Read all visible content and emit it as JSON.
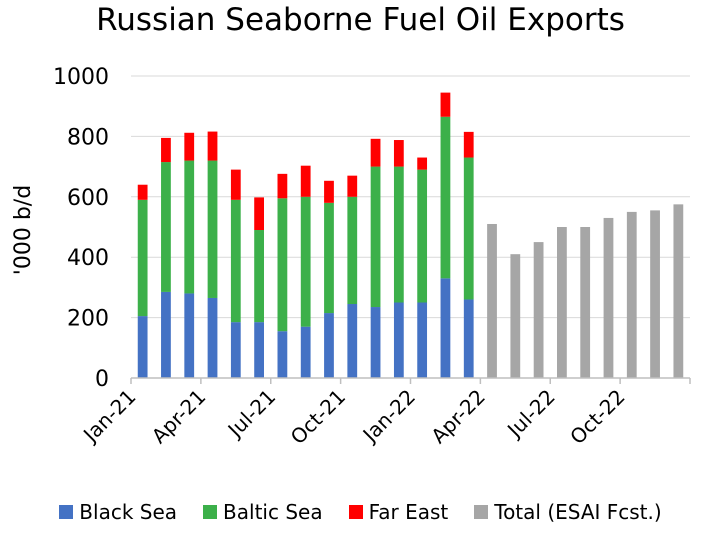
{
  "chart_data": {
    "type": "bar",
    "stacked": true,
    "title": "Russian Seaborne Fuel Oil Exports",
    "xlabel": "",
    "ylabel": "'000 b/d",
    "ylim": [
      0,
      1000
    ],
    "yticks": [
      0,
      200,
      400,
      600,
      800,
      1000
    ],
    "grid": "horizontal",
    "legend_position": "bottom",
    "x_tick_labels": [
      "Jan-21",
      "Apr-21",
      "Jul-21",
      "Oct-21",
      "Jan-22",
      "Apr-22",
      "Jul-22",
      "Oct-22"
    ],
    "categories": [
      "Jan-21",
      "Feb-21",
      "Mar-21",
      "Apr-21",
      "May-21",
      "Jun-21",
      "Jul-21",
      "Aug-21",
      "Sep-21",
      "Oct-21",
      "Nov-21",
      "Dec-21",
      "Jan-22",
      "Feb-22",
      "Mar-22",
      "Apr-22",
      "May-22",
      "Jun-22",
      "Jul-22",
      "Aug-22",
      "Sep-22",
      "Oct-22",
      "Nov-22",
      "Dec-22"
    ],
    "series": [
      {
        "name": "Black Sea",
        "color": "#4472C4",
        "values": [
          205,
          285,
          280,
          265,
          185,
          185,
          155,
          170,
          215,
          245,
          235,
          250,
          250,
          330,
          260,
          null,
          null,
          null,
          null,
          null,
          null,
          null,
          null,
          null
        ]
      },
      {
        "name": "Baltic Sea",
        "color": "#3CB04A",
        "values": [
          385,
          430,
          440,
          455,
          405,
          305,
          440,
          430,
          365,
          355,
          465,
          450,
          440,
          535,
          470,
          null,
          null,
          null,
          null,
          null,
          null,
          null,
          null,
          null
        ]
      },
      {
        "name": "Far East",
        "color": "#FF0000",
        "values": [
          50,
          80,
          92,
          96,
          100,
          108,
          81,
          103,
          73,
          70,
          92,
          88,
          40,
          80,
          85,
          null,
          null,
          null,
          null,
          null,
          null,
          null,
          null,
          null
        ]
      },
      {
        "name": "Total (ESAI Fcst.)",
        "color": "#A6A6A6",
        "values": [
          null,
          null,
          null,
          null,
          null,
          null,
          null,
          null,
          null,
          null,
          null,
          null,
          null,
          null,
          null,
          510,
          410,
          450,
          500,
          500,
          530,
          550,
          555,
          575
        ]
      }
    ]
  }
}
